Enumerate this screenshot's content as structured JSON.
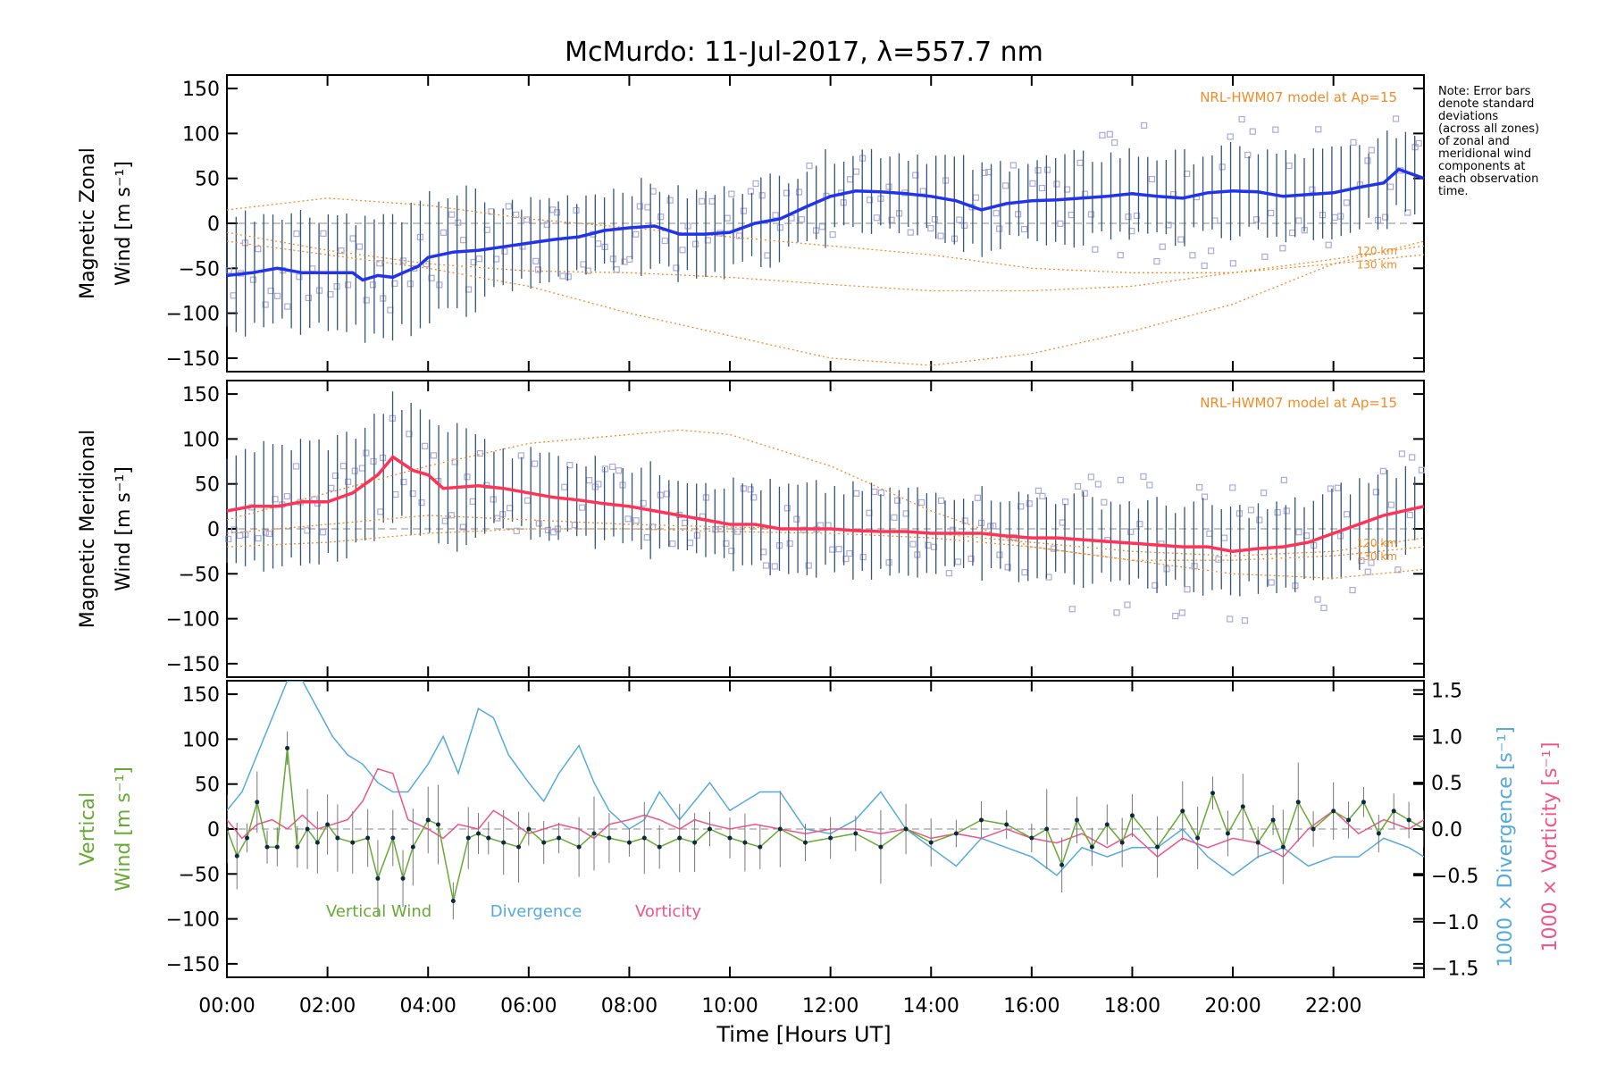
{
  "title": "McMurdo: 11-Jul-2017, λ=557.7 nm",
  "note": [
    "Note: Error bars",
    "denote standard",
    "deviations",
    "(across all zones)",
    "of zonal and",
    "meridional wind",
    "components at",
    "each observation",
    "time."
  ],
  "model_label": "NRL-HWM07 model at Ap=15",
  "model_heights": [
    "120 km",
    "130 km"
  ],
  "xaxis": {
    "label": "Time [Hours UT]",
    "range": [
      0,
      23.8
    ],
    "ticks": [
      0,
      2,
      4,
      6,
      8,
      10,
      12,
      14,
      16,
      18,
      20,
      22
    ],
    "tick_labels": [
      "00:00",
      "02:00",
      "04:00",
      "06:00",
      "08:00",
      "10:00",
      "12:00",
      "14:00",
      "16:00",
      "18:00",
      "20:00",
      "22:00"
    ]
  },
  "colors": {
    "zonal": "#2233ee",
    "zonal_light": "#66aaee",
    "meridional": "#ff3355",
    "model": "#f08c28",
    "vertical": "#66aa33",
    "divergence": "#55aadd",
    "vorticity": "#ee5588",
    "scatter": "#aaaadd",
    "errorbar": "#335577"
  },
  "chart_data": [
    {
      "type": "line",
      "panel": "zonal",
      "ylabel_line1": "Magnetic Zonal",
      "ylabel_line2": "Wind [m s⁻¹]",
      "ylim": [
        -165,
        165
      ],
      "yticks": [
        -150,
        -100,
        -50,
        0,
        50,
        100,
        150
      ],
      "series": [
        {
          "name": "Zonal wind",
          "x": [
            0,
            0.5,
            1,
            1.5,
            2,
            2.5,
            2.7,
            3,
            3.3,
            3.5,
            3.8,
            4,
            4.5,
            5,
            5.5,
            6,
            6.5,
            7,
            7.5,
            8,
            8.5,
            9,
            9.5,
            10,
            10.5,
            11,
            11.5,
            12,
            12.5,
            13,
            13.5,
            14,
            14.5,
            15,
            15.5,
            16,
            16.5,
            17,
            17.5,
            18,
            18.5,
            19,
            19.5,
            20,
            20.5,
            21,
            21.5,
            22,
            22.5,
            23,
            23.3,
            23.8
          ],
          "values": [
            -58,
            -55,
            -50,
            -55,
            -55,
            -55,
            -63,
            -58,
            -60,
            -55,
            -48,
            -38,
            -32,
            -30,
            -26,
            -22,
            -18,
            -15,
            -8,
            -5,
            -3,
            -12,
            -12,
            -10,
            0,
            5,
            18,
            30,
            36,
            35,
            33,
            30,
            25,
            15,
            22,
            25,
            26,
            28,
            30,
            33,
            30,
            28,
            34,
            36,
            35,
            30,
            32,
            34,
            40,
            45,
            60,
            50
          ]
        },
        {
          "name": "NRL-HWM07 model curve 1",
          "x": [
            0,
            2,
            4,
            6,
            8,
            10,
            12,
            14,
            16,
            18,
            20,
            22,
            23.8
          ],
          "values": [
            15,
            28,
            20,
            5,
            -5,
            -15,
            -25,
            -35,
            -50,
            -55,
            -55,
            -45,
            -35
          ]
        },
        {
          "name": "NRL-HWM07 model curve 2",
          "x": [
            0,
            2,
            4,
            6,
            8,
            10,
            12,
            14,
            16,
            18,
            20,
            22,
            23.8
          ],
          "values": [
            -20,
            -35,
            -50,
            -70,
            -100,
            -125,
            -150,
            -158,
            -145,
            -120,
            -90,
            -45,
            -20
          ]
        },
        {
          "name": "NRL-HWM07 model curve 3",
          "x": [
            0,
            2,
            4,
            6,
            8,
            10,
            12,
            14,
            16,
            18,
            20,
            22,
            23.8
          ],
          "values": [
            -10,
            -30,
            -45,
            -53,
            -55,
            -60,
            -68,
            -75,
            -75,
            -70,
            -55,
            -40,
            -25
          ]
        }
      ]
    },
    {
      "type": "line",
      "panel": "meridional",
      "ylabel_line1": "Magnetic Meridional",
      "ylabel_line2": "Wind [m s⁻¹]",
      "ylim": [
        -165,
        165
      ],
      "yticks": [
        -150,
        -100,
        -50,
        0,
        50,
        100,
        150
      ],
      "series": [
        {
          "name": "Meridional wind",
          "x": [
            0,
            0.5,
            1,
            1.5,
            2,
            2.5,
            3,
            3.3,
            3.7,
            4,
            4.3,
            5,
            5.5,
            6,
            6.5,
            7,
            7.5,
            8,
            8.5,
            9,
            9.5,
            10,
            10.5,
            11,
            11.5,
            12,
            12.5,
            13,
            13.5,
            14,
            14.5,
            15,
            15.5,
            16,
            16.5,
            17,
            17.5,
            18,
            18.5,
            19,
            19.5,
            20,
            20.5,
            21,
            21.5,
            22,
            22.5,
            23,
            23.8
          ],
          "values": [
            20,
            25,
            25,
            30,
            30,
            40,
            60,
            80,
            65,
            60,
            45,
            48,
            45,
            40,
            35,
            32,
            28,
            25,
            20,
            15,
            10,
            5,
            5,
            0,
            0,
            0,
            -2,
            -3,
            -3,
            -5,
            -5,
            -5,
            -8,
            -10,
            -10,
            -12,
            -14,
            -16,
            -18,
            -20,
            -20,
            -25,
            -22,
            -20,
            -15,
            -5,
            5,
            15,
            25
          ]
        },
        {
          "name": "NRL-HWM07 model curve 1",
          "x": [
            0,
            2,
            4,
            6,
            8,
            9,
            10,
            12,
            14,
            16,
            18,
            20,
            22,
            23.8
          ],
          "values": [
            10,
            40,
            70,
            95,
            105,
            110,
            105,
            70,
            20,
            -20,
            -35,
            -35,
            -30,
            -20
          ]
        },
        {
          "name": "NRL-HWM07 model curve 2",
          "x": [
            0,
            2,
            4,
            6,
            8,
            10,
            12,
            14,
            16,
            18,
            20,
            22,
            23.8
          ],
          "values": [
            -5,
            5,
            15,
            10,
            5,
            2,
            0,
            -5,
            -15,
            -25,
            -30,
            -25,
            -10
          ]
        },
        {
          "name": "NRL-HWM07 model curve 3",
          "x": [
            0,
            2,
            4,
            6,
            8,
            10,
            12,
            14,
            16,
            18,
            20,
            22,
            23.8
          ],
          "values": [
            -20,
            -15,
            -5,
            0,
            0,
            -3,
            -5,
            -10,
            -20,
            -35,
            -50,
            -55,
            -45
          ]
        }
      ]
    },
    {
      "type": "line",
      "panel": "vertical",
      "ylabel_line1": "Vertical",
      "ylabel_line2": "Wind [m s⁻¹]",
      "ylim": [
        -165,
        165
      ],
      "yticks": [
        -150,
        -100,
        -50,
        0,
        50,
        100,
        150
      ],
      "y2label_div": "1000 × Divergence [s⁻¹]",
      "y2label_vor": "1000 × Vorticity [s⁻¹]",
      "y2lim": [
        -1.6,
        1.6
      ],
      "y2ticks": [
        -1.5,
        -1.0,
        -0.5,
        0.0,
        0.5,
        1.0,
        1.5
      ],
      "y2tick_labels": [
        "−1.5",
        "−1.0",
        "−0.5",
        "0.0",
        "0.5",
        "1.0",
        "1.5"
      ],
      "legend": [
        "Vertical Wind",
        "Divergence",
        "Vorticity"
      ],
      "series": [
        {
          "name": "Vertical Wind",
          "axis": "left",
          "x": [
            0,
            0.2,
            0.4,
            0.6,
            0.8,
            1.0,
            1.2,
            1.4,
            1.6,
            1.8,
            2.0,
            2.2,
            2.5,
            2.8,
            3.0,
            3.3,
            3.5,
            3.7,
            4.0,
            4.2,
            4.5,
            4.8,
            5.0,
            5.2,
            5.5,
            5.8,
            6.0,
            6.3,
            6.6,
            7.0,
            7.3,
            7.6,
            8.0,
            8.3,
            8.6,
            9.0,
            9.3,
            9.6,
            10.0,
            10.3,
            10.6,
            11.0,
            11.5,
            12.0,
            12.5,
            13.0,
            13.5,
            14.0,
            14.5,
            15.0,
            15.5,
            16.0,
            16.3,
            16.6,
            16.9,
            17.2,
            17.5,
            17.8,
            18.0,
            18.5,
            19.0,
            19.3,
            19.6,
            19.9,
            20.2,
            20.5,
            20.8,
            21.0,
            21.3,
            21.6,
            22.0,
            22.3,
            22.6,
            22.9,
            23.2,
            23.5,
            23.8
          ],
          "values": [
            0,
            -30,
            -10,
            30,
            -20,
            -20,
            90,
            -20,
            0,
            -15,
            5,
            -10,
            -15,
            -10,
            -55,
            -10,
            -55,
            -20,
            10,
            5,
            -80,
            -10,
            -5,
            -10,
            -15,
            -20,
            0,
            -15,
            -10,
            -20,
            -5,
            -10,
            -15,
            -10,
            -20,
            -10,
            -15,
            0,
            -10,
            -15,
            -20,
            0,
            -15,
            -10,
            -5,
            -20,
            0,
            -15,
            -5,
            10,
            5,
            -10,
            0,
            -40,
            10,
            -20,
            5,
            -15,
            15,
            -20,
            20,
            -10,
            40,
            -5,
            25,
            -15,
            10,
            -20,
            30,
            0,
            20,
            10,
            30,
            -5,
            20,
            10,
            0
          ]
        },
        {
          "name": "Divergence",
          "axis": "right",
          "x": [
            0,
            0.3,
            0.6,
            0.9,
            1.2,
            1.5,
            1.8,
            2.1,
            2.4,
            2.7,
            3.0,
            3.3,
            3.6,
            4.0,
            4.3,
            4.6,
            5.0,
            5.3,
            5.6,
            6.0,
            6.3,
            6.6,
            7.0,
            7.3,
            7.6,
            8.0,
            8.3,
            8.6,
            9.0,
            9.3,
            9.6,
            10.0,
            10.3,
            10.6,
            11.0,
            11.5,
            12.0,
            12.5,
            13.0,
            13.5,
            14.0,
            14.5,
            15.0,
            15.5,
            16.0,
            16.5,
            17.0,
            17.5,
            18.0,
            18.5,
            19.0,
            19.5,
            20.0,
            20.5,
            21.0,
            21.5,
            22.0,
            22.5,
            23.0,
            23.5,
            23.8
          ],
          "values": [
            0.2,
            0.4,
            0.8,
            1.2,
            1.6,
            1.6,
            1.3,
            1.0,
            0.8,
            0.7,
            0.5,
            0.4,
            0.4,
            0.7,
            1.0,
            0.6,
            1.3,
            1.2,
            0.8,
            0.5,
            0.3,
            0.6,
            0.9,
            0.5,
            0.2,
            0.0,
            0.1,
            0.4,
            0.1,
            0.3,
            0.5,
            0.2,
            0.3,
            0.4,
            0.4,
            0.0,
            -0.05,
            0.1,
            0.4,
            0.0,
            -0.2,
            -0.4,
            -0.1,
            -0.2,
            -0.3,
            -0.5,
            -0.2,
            -0.3,
            -0.2,
            -0.2,
            0.0,
            -0.3,
            -0.5,
            -0.3,
            -0.2,
            -0.4,
            -0.3,
            -0.3,
            -0.1,
            -0.2,
            -0.3
          ]
        },
        {
          "name": "Vorticity",
          "axis": "right",
          "x": [
            0,
            0.3,
            0.6,
            0.9,
            1.2,
            1.5,
            1.8,
            2.1,
            2.4,
            2.7,
            3.0,
            3.3,
            3.6,
            4.0,
            4.3,
            4.6,
            5.0,
            5.3,
            5.6,
            6.0,
            6.3,
            6.6,
            7.0,
            7.3,
            7.6,
            8.0,
            8.3,
            8.6,
            9.0,
            9.3,
            9.6,
            10.0,
            10.5,
            11.0,
            11.5,
            12.0,
            12.5,
            13.0,
            13.5,
            14.0,
            14.5,
            15.0,
            15.5,
            16.0,
            16.5,
            17.0,
            17.5,
            18.0,
            18.5,
            19.0,
            19.5,
            20.0,
            20.5,
            21.0,
            21.5,
            22.0,
            22.5,
            23.0,
            23.5,
            23.8
          ],
          "values": [
            0.1,
            -0.1,
            0.05,
            0.1,
            0.0,
            0.15,
            0.0,
            0.05,
            0.1,
            0.3,
            0.65,
            0.6,
            0.1,
            0.0,
            -0.1,
            0.05,
            0.0,
            0.2,
            0.1,
            -0.05,
            0.0,
            0.05,
            0.0,
            -0.1,
            0.05,
            0.1,
            0.15,
            0.1,
            0.0,
            0.1,
            0.05,
            0.0,
            0.05,
            0.0,
            -0.05,
            0.0,
            0.0,
            -0.05,
            0.0,
            -0.1,
            -0.05,
            -0.1,
            0.0,
            -0.1,
            -0.15,
            -0.05,
            -0.2,
            -0.05,
            -0.3,
            -0.1,
            -0.2,
            -0.1,
            -0.15,
            -0.3,
            0.0,
            0.2,
            -0.05,
            0.1,
            0.0,
            0.1
          ]
        }
      ]
    }
  ]
}
